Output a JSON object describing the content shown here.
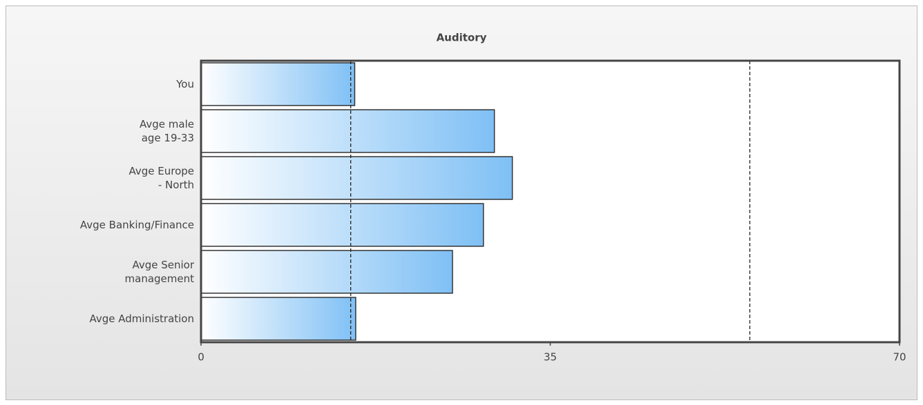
{
  "chart_data": {
    "type": "bar",
    "orientation": "horizontal",
    "title": "Auditory",
    "categories": [
      "You",
      "Avge male\nage 19-33",
      "Avge Europe\n- North",
      "Avge Banking/Finance",
      "Avge Senior\nmanagement",
      "Avge Administration"
    ],
    "values": [
      15.4,
      29.4,
      31.2,
      28.3,
      25.2,
      15.5
    ],
    "color": "#7fc0f5",
    "xlim": [
      0,
      70
    ],
    "xticks": [
      0,
      35,
      70
    ],
    "reference_lines": [
      15,
      55
    ]
  }
}
